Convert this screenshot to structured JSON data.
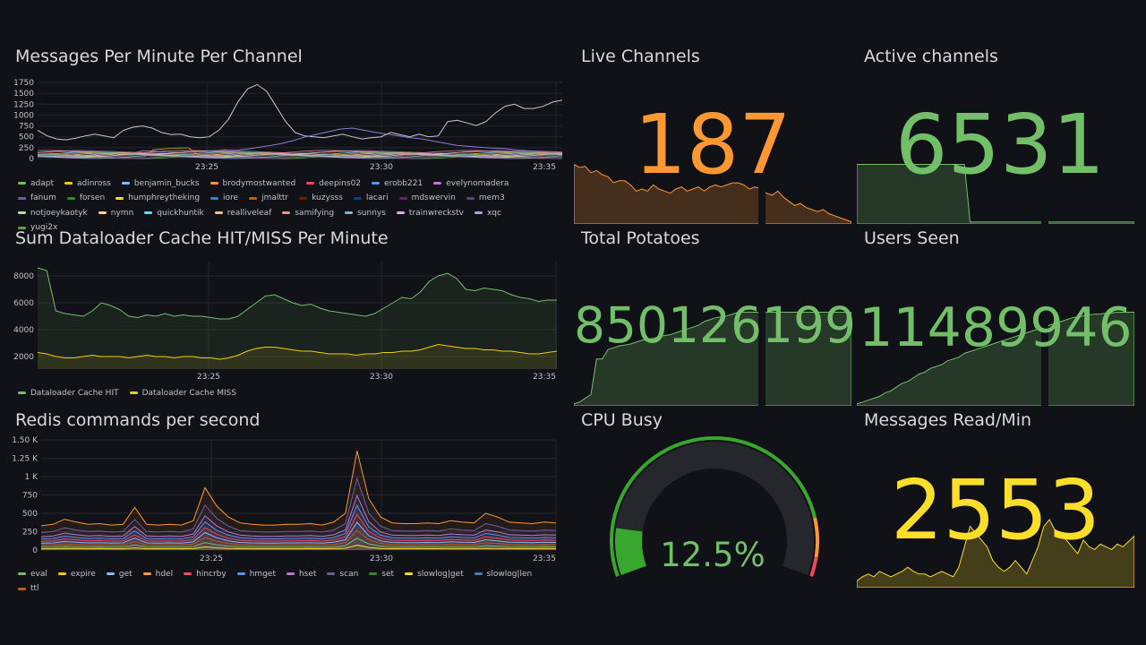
{
  "panels": {
    "messages_per_minute": {
      "title": "Messages Per Minute Per Channel",
      "y_ticks": [
        "1750",
        "1500",
        "1250",
        "1000",
        "750",
        "500",
        "250",
        "0"
      ],
      "x_ticks": [
        "23:25",
        "23:30",
        "23:35"
      ],
      "legend": [
        {
          "name": "adapt",
          "color": "#73bf69"
        },
        {
          "name": "adinross",
          "color": "#f2cc0c"
        },
        {
          "name": "benjamin_bucks",
          "color": "#8ab8ff"
        },
        {
          "name": "brodymostwanted",
          "color": "#ff9830"
        },
        {
          "name": "deepins02",
          "color": "#f2495c"
        },
        {
          "name": "erobb221",
          "color": "#5794f2"
        },
        {
          "name": "evelynomadera",
          "color": "#b877d9"
        },
        {
          "name": "fanum",
          "color": "#705da0"
        },
        {
          "name": "forsen",
          "color": "#37872d"
        },
        {
          "name": "humphreytheking",
          "color": "#fade2a"
        },
        {
          "name": "iore",
          "color": "#447ebc"
        },
        {
          "name": "jmalttr",
          "color": "#c15c17"
        },
        {
          "name": "kuzysss",
          "color": "#890f02"
        },
        {
          "name": "lacari",
          "color": "#0a437c"
        },
        {
          "name": "mdswervin",
          "color": "#6d1f62"
        },
        {
          "name": "mem3",
          "color": "#584477"
        },
        {
          "name": "notjoeykaotyk",
          "color": "#b7dbab"
        },
        {
          "name": "nymn",
          "color": "#f4d598"
        },
        {
          "name": "quickhuntik",
          "color": "#70dbed"
        },
        {
          "name": "realliveleaf",
          "color": "#f9ba8f"
        },
        {
          "name": "samifying",
          "color": "#f29191"
        },
        {
          "name": "sunnys",
          "color": "#82b5d8"
        },
        {
          "name": "trainwreckstv",
          "color": "#e5a8e2"
        },
        {
          "name": "xqc",
          "color": "#aea2e0"
        },
        {
          "name": "yugi2x",
          "color": "#629e51"
        }
      ]
    },
    "cache_hit_miss": {
      "title": "Sum Dataloader Cache HIT/MISS Per Minute",
      "y_ticks": [
        "8000",
        "6000",
        "4000",
        "2000"
      ],
      "x_ticks": [
        "23:25",
        "23:30",
        "23:35"
      ],
      "legend": [
        {
          "name": "Dataloader Cache HIT",
          "color": "#73bf69"
        },
        {
          "name": "Dataloader Cache MISS",
          "color": "#f2cc0c"
        }
      ]
    },
    "redis_commands": {
      "title": "Redis commands per second",
      "y_ticks": [
        "1.50 K",
        "1.25 K",
        "1 K",
        "750",
        "500",
        "250",
        "0"
      ],
      "x_ticks": [
        "23:25",
        "23:30",
        "23:35"
      ],
      "legend": [
        {
          "name": "eval",
          "color": "#73bf69"
        },
        {
          "name": "expire",
          "color": "#f2cc0c"
        },
        {
          "name": "get",
          "color": "#8ab8ff"
        },
        {
          "name": "hdel",
          "color": "#ff9830"
        },
        {
          "name": "hincrby",
          "color": "#f2495c"
        },
        {
          "name": "hmget",
          "color": "#5794f2"
        },
        {
          "name": "hset",
          "color": "#b877d9"
        },
        {
          "name": "scan",
          "color": "#705da0"
        },
        {
          "name": "set",
          "color": "#37872d"
        },
        {
          "name": "slowlog|get",
          "color": "#fade2a"
        },
        {
          "name": "slowlog|len",
          "color": "#447ebc"
        },
        {
          "name": "ttl",
          "color": "#c15c17"
        }
      ]
    },
    "live_channels": {
      "title": "Live Channels",
      "value": "187",
      "color": "#ff9830"
    },
    "active_channels": {
      "title": "Active channels",
      "value": "6531",
      "color": "#73bf69"
    },
    "total_potatoes": {
      "title": "Total Potatoes",
      "value": "850126199",
      "color": "#73bf69"
    },
    "users_seen": {
      "title": "Users Seen",
      "value": "11489946",
      "color": "#73bf69"
    },
    "cpu_busy": {
      "title": "CPU Busy",
      "value": "12.5%",
      "percent": 12.5,
      "color": "#73bf69"
    },
    "messages_read": {
      "title": "Messages Read/Min",
      "value": "2553",
      "color": "#fade2a"
    }
  }
}
